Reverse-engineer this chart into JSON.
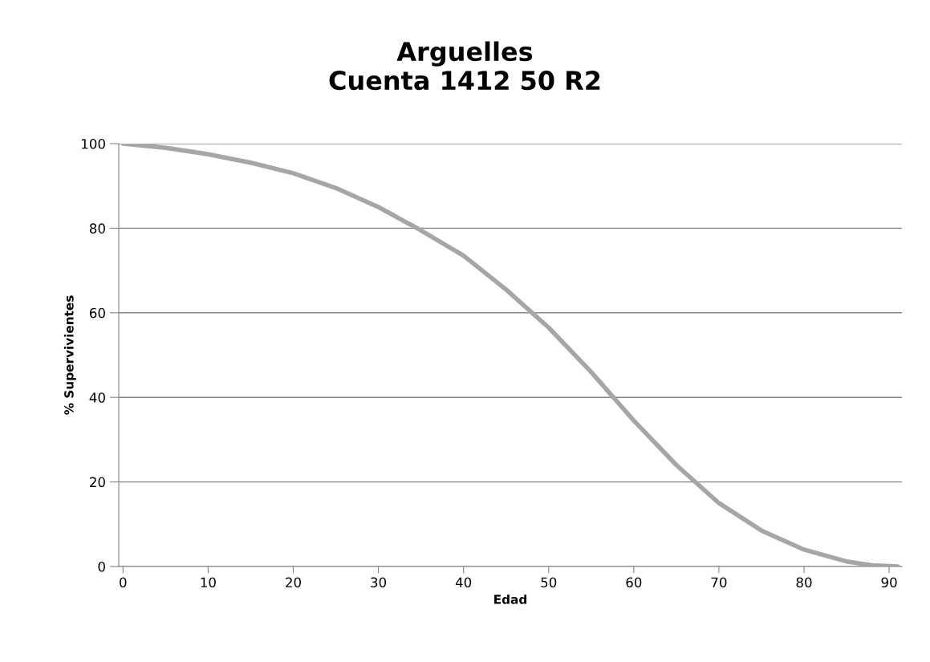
{
  "chart_data": {
    "type": "line",
    "title": "Arguelles\nCuenta 1412 50 R2",
    "xlabel": "Edad",
    "ylabel": "% Supervivientes",
    "x": [
      0,
      5,
      10,
      15,
      20,
      25,
      30,
      35,
      40,
      45,
      50,
      55,
      60,
      65,
      70,
      75,
      80,
      85,
      88,
      91
    ],
    "series": [
      {
        "color": "#a6a6a6",
        "values": [
          100,
          99,
          97.5,
          95.5,
          93,
          89.5,
          85,
          79.5,
          73.5,
          65.5,
          56.5,
          46,
          34.5,
          24,
          15,
          8.5,
          4,
          1.2,
          0.3,
          0
        ]
      }
    ],
    "xlim": [
      -0.5,
      91.5
    ],
    "xticks": [
      0,
      10,
      20,
      30,
      40,
      50,
      60,
      70,
      80,
      90
    ],
    "ylim": [
      0,
      100
    ],
    "yticks": [
      0,
      20,
      40,
      60,
      80,
      100
    ],
    "grid": "y",
    "legend": false,
    "marker": "none",
    "line_style": "solid"
  }
}
